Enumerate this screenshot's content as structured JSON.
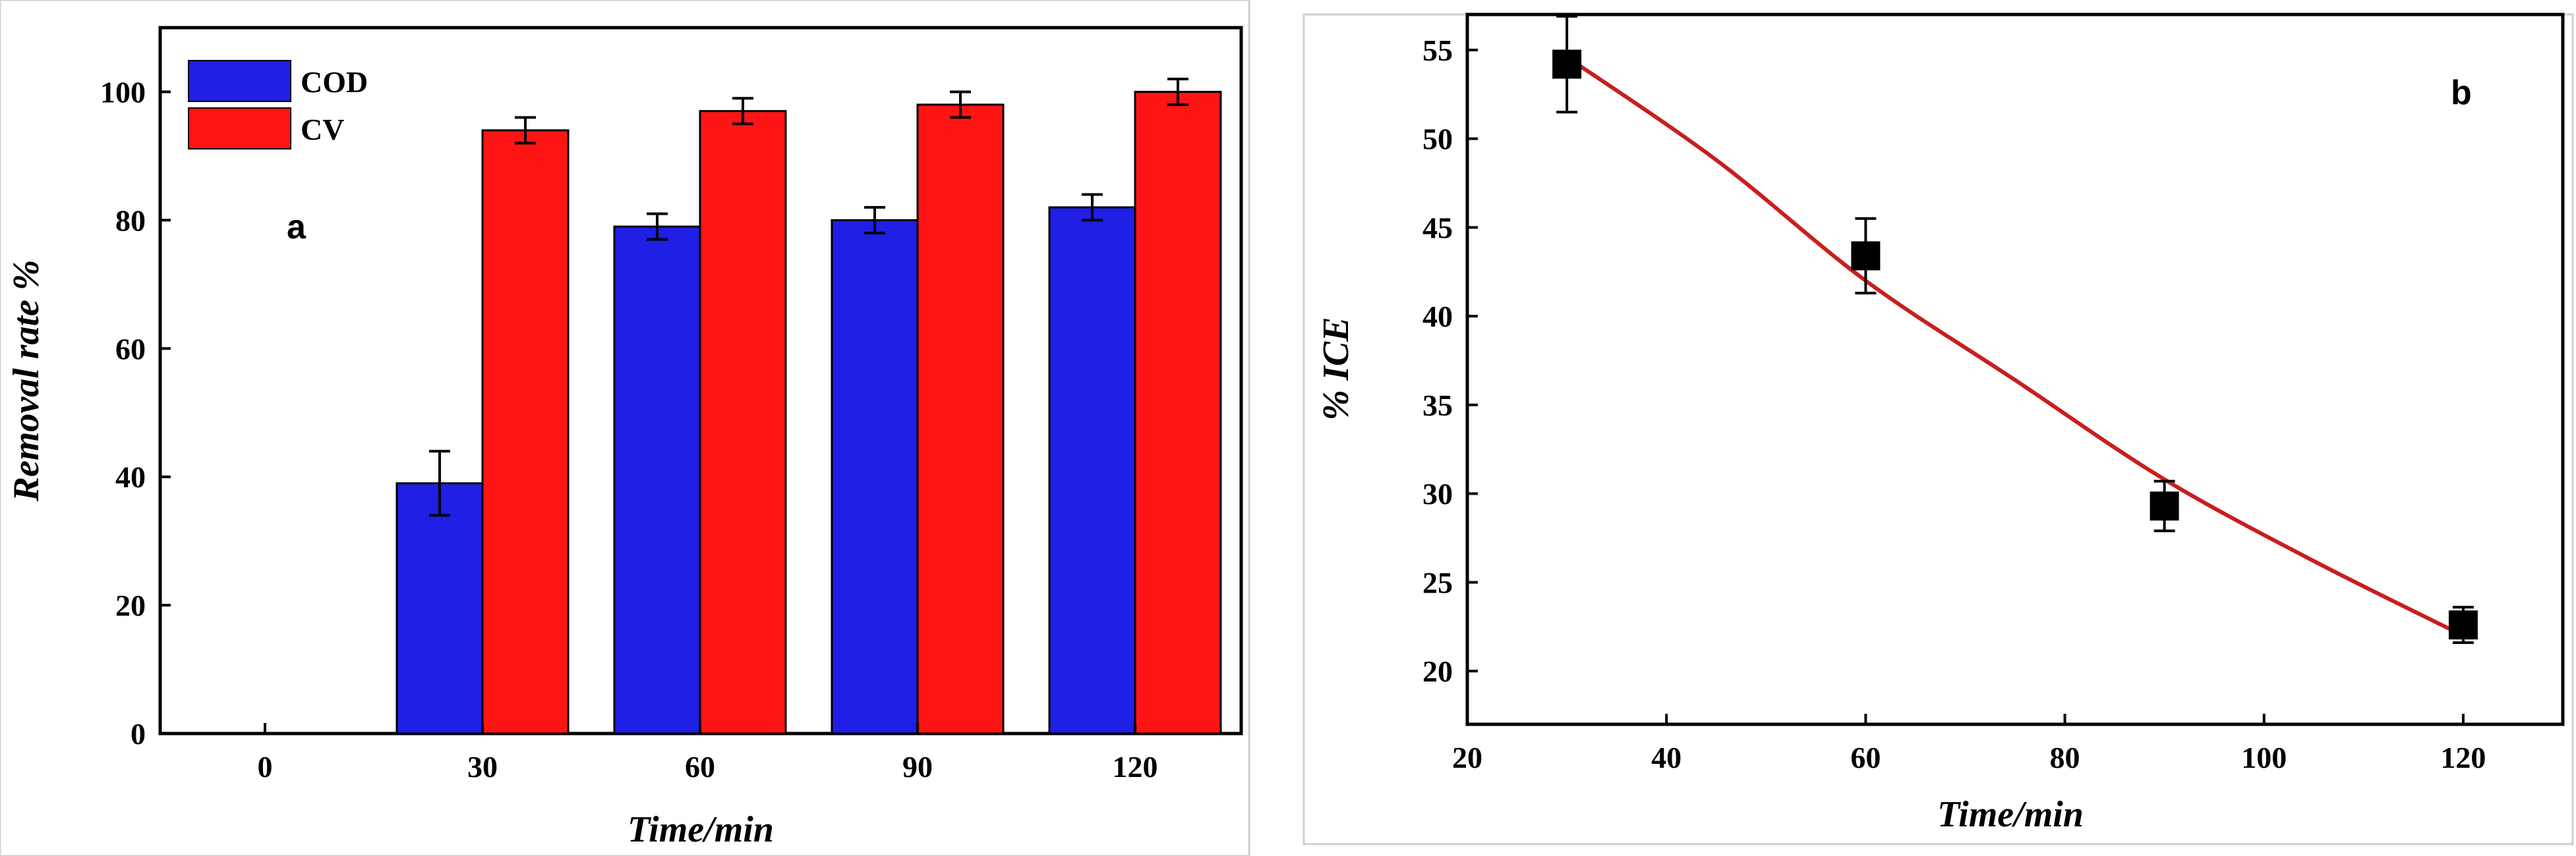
{
  "chart_data": [
    {
      "type": "bar",
      "panel_label": "a",
      "categories": [
        "0",
        "30",
        "60",
        "90",
        "120"
      ],
      "xlabel": "Time/min",
      "ylabel": "Removal rate %",
      "ylim": [
        0,
        110
      ],
      "yticks": [
        "0",
        "20",
        "40",
        "60",
        "80",
        "100"
      ],
      "legend_position": "top-left",
      "series": [
        {
          "name": "COD",
          "color": "#1f1fe6",
          "values": [
            0,
            39,
            79,
            80,
            82
          ],
          "errors": [
            0,
            5,
            2,
            2,
            2
          ]
        },
        {
          "name": "CV",
          "color": "#ff1414",
          "values": [
            0,
            94,
            97,
            98,
            100
          ],
          "errors": [
            0,
            2,
            2,
            2,
            2
          ]
        }
      ]
    },
    {
      "type": "scatter",
      "panel_label": "b",
      "xlabel": "Time/min",
      "ylabel": "% ICE",
      "xlim": [
        20,
        130
      ],
      "ylim": [
        17,
        57
      ],
      "xticks": [
        "20",
        "40",
        "60",
        "80",
        "100",
        "120"
      ],
      "yticks": [
        "20",
        "25",
        "30",
        "35",
        "40",
        "45",
        "50",
        "55"
      ],
      "points": [
        {
          "x": 30,
          "y": 54.2,
          "err": 2.7
        },
        {
          "x": 60,
          "y": 43.4,
          "err": 2.1
        },
        {
          "x": 90,
          "y": 29.3,
          "err": 1.4
        },
        {
          "x": 120,
          "y": 22.6,
          "err": 1.0
        }
      ],
      "fit_curve_color": "#c81e1e",
      "fit_curve": [
        {
          "x": 30,
          "y": 54.6
        },
        {
          "x": 45,
          "y": 48.8
        },
        {
          "x": 60,
          "y": 42.0
        },
        {
          "x": 75,
          "y": 36.4
        },
        {
          "x": 90,
          "y": 30.8
        },
        {
          "x": 105,
          "y": 26.2
        },
        {
          "x": 120,
          "y": 22.0
        }
      ]
    }
  ]
}
